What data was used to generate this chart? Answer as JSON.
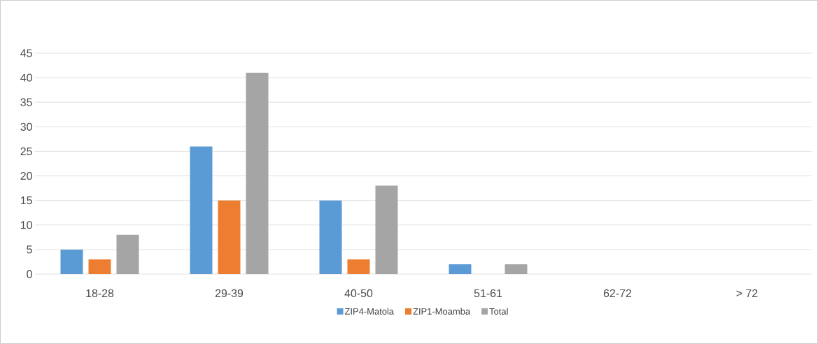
{
  "chart_data": {
    "type": "bar",
    "categories": [
      "18-28",
      "29-39",
      "40-50",
      "51-61",
      "62-72",
      "> 72"
    ],
    "series": [
      {
        "name": "ZIP4-Matola",
        "color": "#5b9bd5",
        "values": [
          5,
          26,
          15,
          2,
          0,
          0
        ]
      },
      {
        "name": "ZIP1-Moamba",
        "color": "#ed7d31",
        "values": [
          3,
          15,
          3,
          0,
          0,
          0
        ]
      },
      {
        "name": "Total",
        "color": "#a5a5a5",
        "values": [
          8,
          41,
          18,
          2,
          0,
          0
        ]
      }
    ],
    "ylim": [
      0,
      45
    ],
    "yticks": [
      0,
      5,
      10,
      15,
      20,
      25,
      30,
      35,
      40,
      45
    ],
    "grid": "y",
    "legend": "bottom"
  }
}
